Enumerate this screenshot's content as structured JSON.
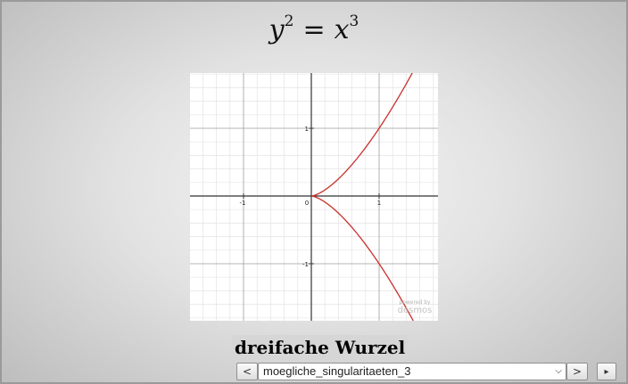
{
  "formula": {
    "lhs_var": "y",
    "lhs_exp": "2",
    "eq": "=",
    "rhs_var": "x",
    "rhs_exp": "3"
  },
  "graph": {
    "tick_labels": {
      "x_neg1": "-1",
      "origin": "0",
      "x_pos1": "1",
      "y_pos1": "1",
      "y_neg1": "-1"
    },
    "watermark_line1": "powered by",
    "watermark_line2": "desmos",
    "curve_color": "#c9302c",
    "axis_color": "#333333",
    "major_grid_color": "#9e9e9e",
    "minor_grid_color": "#e4e4e4"
  },
  "chart_data": {
    "type": "line",
    "series": [
      {
        "values": "y^2 = x^3"
      }
    ],
    "xlim": [
      -1.8,
      1.85
    ],
    "ylim": [
      -1.8,
      1.85
    ],
    "grid": true
  },
  "caption": "dreifache Wurzel",
  "nav": {
    "prev_label": "<",
    "next_label": ">",
    "play_label": "▸",
    "selected_option": "moegliche_singularitaeten_3"
  }
}
